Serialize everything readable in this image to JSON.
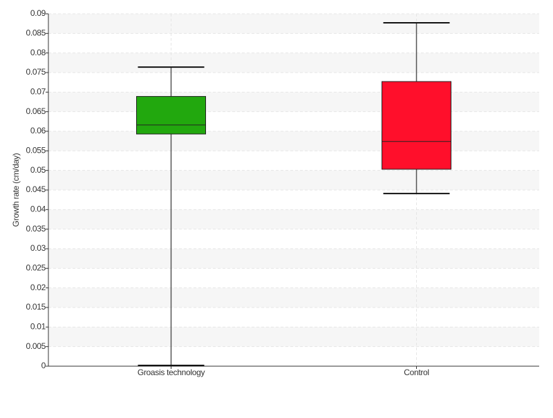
{
  "chart_data": {
    "type": "box",
    "y_label": "Growth rate (cm/day)",
    "categories": [
      "Groasis technology",
      "Control"
    ],
    "colors": [
      "#22a80e",
      "#ff0f2b"
    ],
    "boxes": [
      {
        "whislo": 0.0002,
        "q1": 0.0593,
        "med": 0.0616,
        "q3": 0.0689,
        "whishi": 0.0764
      },
      {
        "whislo": 0.0441,
        "q1": 0.0503,
        "med": 0.0574,
        "q3": 0.0727,
        "whishi": 0.0877
      }
    ],
    "ylim": [
      0,
      0.09
    ],
    "yticks": [
      0,
      0.005,
      0.01,
      0.015,
      0.02,
      0.025,
      0.03,
      0.035,
      0.04,
      0.045,
      0.05,
      0.055,
      0.06,
      0.065,
      0.07,
      0.075,
      0.08,
      0.085,
      0.09
    ],
    "grid": true
  }
}
